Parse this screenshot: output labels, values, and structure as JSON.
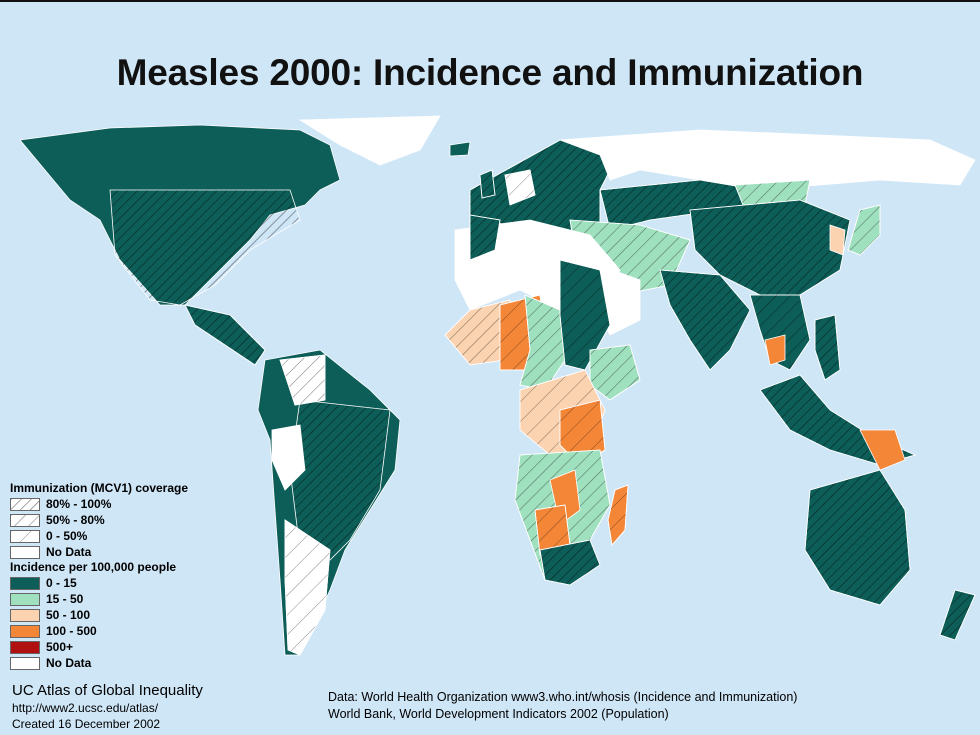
{
  "title": "Measles 2000: Incidence and Immunization",
  "colors": {
    "ocean": "#cfe6f7",
    "inc_0_15": "#0d5e58",
    "inc_15_50": "#9fe0bf",
    "inc_50_100": "#fbd3b0",
    "inc_100_500": "#f48638",
    "inc_500_plus": "#b11010",
    "no_data": "#ffffff"
  },
  "legend": {
    "immunization_title": "Immunization (MCV1) coverage",
    "immunization": [
      {
        "label": "80% - 100%",
        "hatch": "dense"
      },
      {
        "label": "50% - 80%",
        "hatch": "medium"
      },
      {
        "label": "0 - 50%",
        "hatch": "sparse"
      },
      {
        "label": "No Data",
        "hatch": "none"
      }
    ],
    "incidence_title": "Incidence per 100,000 people",
    "incidence": [
      {
        "label": "0 - 15",
        "color": "#0d5e58"
      },
      {
        "label": "15 - 50",
        "color": "#9fe0bf"
      },
      {
        "label": "50 - 100",
        "color": "#fbd3b0"
      },
      {
        "label": "100 - 500",
        "color": "#f48638"
      },
      {
        "label": "500+",
        "color": "#b11010"
      },
      {
        "label": "No Data",
        "color": "#ffffff"
      }
    ]
  },
  "credit": {
    "line1": "UC Atlas of Global Inequality",
    "line2": "http://www2.ucsc.edu/atlas/",
    "line3": "Created 16 December 2002"
  },
  "source": {
    "line1": "Data: World Health Organization www3.who.int/whosis (Incidence and Immunization)",
    "line2": "World Bank, World Development Indicators 2002 (Population)"
  }
}
